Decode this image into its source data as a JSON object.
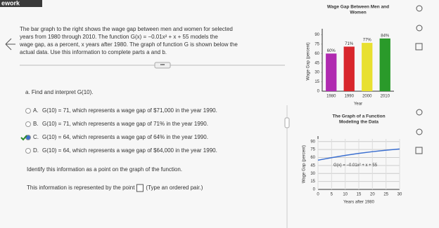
{
  "header": {
    "title": "ework"
  },
  "problem": {
    "lines": [
      "The bar graph to the right shows the wage gap between men and women for selected",
      "years from 1980 through 2010. The function G(x) = −0.01x² + x + 55 models the",
      "wage gap, as a percent, x years after 1980. The graph of function G is shown below the",
      "actual data. Use this information to complete parts a and b."
    ]
  },
  "part_a": {
    "prompt": "a. Find and interpret G(10).",
    "options": [
      {
        "letter": "A.",
        "text": "G(10) = 71, which represents a wage gap of $71,000 in the year 1990.",
        "checked": false
      },
      {
        "letter": "B.",
        "text": "G(10) = 71, which represents a wage gap of 71% in the year 1990.",
        "checked": false
      },
      {
        "letter": "C.",
        "text": "G(10) = 64, which represents a wage gap of 64% in the year 1990.",
        "checked": true
      },
      {
        "letter": "D.",
        "text": "G(10) = 64, which represents a wage gap of $64,000 in the year 1990.",
        "checked": false
      }
    ],
    "identify": "Identify this information as a point on the graph of the function.",
    "answer_before": "This information is represented by the point",
    "answer_after": "(Type an ordered pair.)"
  },
  "chart_data": [
    {
      "type": "bar",
      "title": [
        "Wage Gap Between Men and",
        "Women"
      ],
      "categories": [
        "1980",
        "1990",
        "2000",
        "2010"
      ],
      "values": [
        60,
        71,
        77,
        84
      ],
      "value_labels": [
        "60%",
        "71%",
        "77%",
        "84%"
      ],
      "colors": [
        "#b02ab0",
        "#d8262c",
        "#e8e030",
        "#2a9a2a"
      ],
      "ylim": [
        0,
        95
      ],
      "yticks": [
        0,
        15,
        30,
        45,
        60,
        75,
        90
      ],
      "xlabel": "Year",
      "ylabel": "Wage Gap (percent)"
    },
    {
      "type": "line",
      "title": [
        "The Graph of a Function",
        "Modeling the Data"
      ],
      "x": [
        0,
        5,
        10,
        15,
        20,
        25,
        30
      ],
      "values": [
        55,
        59.75,
        64,
        67.75,
        71,
        73.75,
        76
      ],
      "color": "#3b6fd0",
      "xlim": [
        0,
        30
      ],
      "ylim": [
        0,
        95
      ],
      "xticks": [
        0,
        5,
        10,
        15,
        20,
        25,
        30
      ],
      "yticks": [
        0,
        15,
        30,
        45,
        60,
        75,
        90
      ],
      "grid": true,
      "annotation": "G(x) = −0.01x² + x + 55",
      "xlabel": "Years after 1980",
      "ylabel": "Wage Gap (percent)"
    }
  ]
}
